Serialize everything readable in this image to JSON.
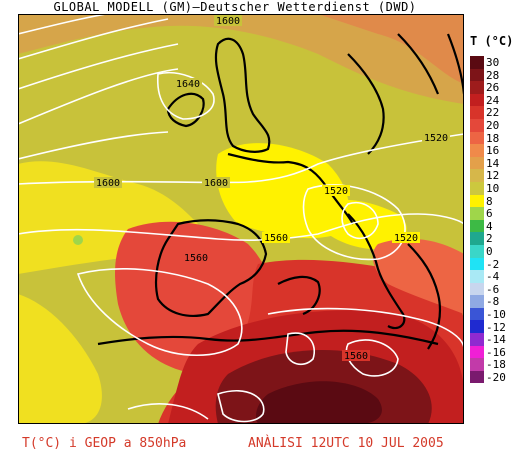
{
  "header": {
    "title": "GLOBAL MODELL (GM)—Deutscher Wetterdienst (DWD)"
  },
  "legend": {
    "title": "T (°C)",
    "entries": [
      {
        "label": "30",
        "color": "#5a0a12"
      },
      {
        "label": "28",
        "color": "#7d1418"
      },
      {
        "label": "26",
        "color": "#9e1c1c"
      },
      {
        "label": "24",
        "color": "#c21f1f"
      },
      {
        "label": "22",
        "color": "#d8342a"
      },
      {
        "label": "20",
        "color": "#e4483a"
      },
      {
        "label": "18",
        "color": "#ed6544"
      },
      {
        "label": "16",
        "color": "#f08a4a"
      },
      {
        "label": "14",
        "color": "#e3a04a"
      },
      {
        "label": "12",
        "color": "#d6b74a"
      },
      {
        "label": "10",
        "color": "#ccc83e"
      },
      {
        "label": "8",
        "color": "#fff200"
      },
      {
        "label": "6",
        "color": "#9fd64a"
      },
      {
        "label": "4",
        "color": "#3dba45"
      },
      {
        "label": "2",
        "color": "#1fa88f"
      },
      {
        "label": "0",
        "color": "#3ad6c8"
      },
      {
        "label": "-2",
        "color": "#1fe3f5"
      },
      {
        "label": "-4",
        "color": "#a9e9f5"
      },
      {
        "label": "-6",
        "color": "#c8d6ee"
      },
      {
        "label": "-8",
        "color": "#8fa9e3"
      },
      {
        "label": "-10",
        "color": "#3a55d6"
      },
      {
        "label": "-12",
        "color": "#1f2ad0"
      },
      {
        "label": "-14",
        "color": "#8f2ad0"
      },
      {
        "label": "-16",
        "color": "#f01fd6"
      },
      {
        "label": "-18",
        "color": "#c23aa9"
      },
      {
        "label": "-20",
        "color": "#7a1a6e"
      }
    ]
  },
  "map": {
    "contour_labels": [
      "1600",
      "1640",
      "1600",
      "1600",
      "1520",
      "1520",
      "1560",
      "1520",
      "1560",
      "1560"
    ],
    "ocean_color": "#c8c23a",
    "land_warm": "#e4483a"
  },
  "footer": {
    "left": "T(°C) i GEOP a 850hPa",
    "right": "ANÀLISI 12UTC 10 JUL 2005"
  }
}
